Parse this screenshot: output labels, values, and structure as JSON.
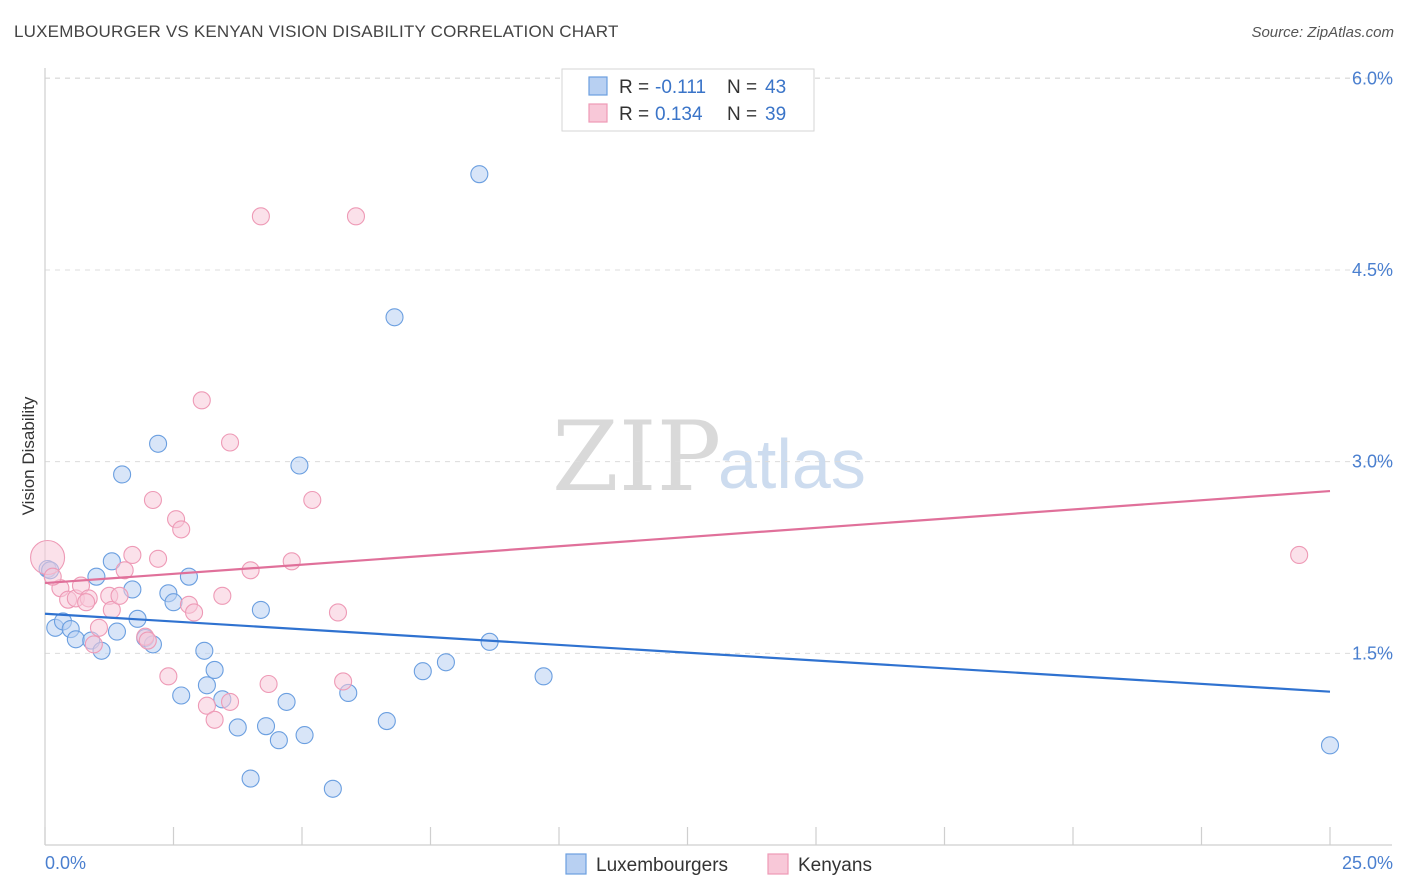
{
  "title": "LUXEMBOURGER VS KENYAN VISION DISABILITY CORRELATION CHART",
  "source": "Source: ZipAtlas.com",
  "watermark": {
    "zip": "ZIP",
    "atlas": "atlas"
  },
  "chart_data": {
    "type": "scatter",
    "ylabel": "Vision Disability",
    "xlim": [
      0,
      25
    ],
    "ylim": [
      0,
      6.3
    ],
    "x_tick_labels": [
      "0.0%",
      "25.0%"
    ],
    "y_ticks": [
      1.5,
      3.0,
      4.5,
      6.0
    ],
    "y_tick_labels": [
      "1.5%",
      "3.0%",
      "4.5%",
      "6.0%"
    ],
    "legend": [
      {
        "r_label": "R =",
        "r_value": "-0.111",
        "n_label": "N =",
        "n_value": "43"
      },
      {
        "r_label": "R =",
        "r_value": "0.134",
        "n_label": "N =",
        "n_value": "39"
      }
    ],
    "series": [
      {
        "name": "Luxembourgers",
        "color": "#6b9fe0",
        "fill": "#b8d0f2",
        "line_color": "#2f72d0",
        "trend": {
          "x": [
            0,
            25
          ],
          "y": [
            1.81,
            1.2
          ]
        },
        "points": [
          [
            0.05,
            2.16
          ],
          [
            0.2,
            1.7
          ],
          [
            0.35,
            1.75
          ],
          [
            0.5,
            1.69
          ],
          [
            0.6,
            1.61
          ],
          [
            0.9,
            1.6
          ],
          [
            1.0,
            2.1
          ],
          [
            1.1,
            1.52
          ],
          [
            1.3,
            2.22
          ],
          [
            1.4,
            1.67
          ],
          [
            1.5,
            2.9
          ],
          [
            1.7,
            2.0
          ],
          [
            1.8,
            1.77
          ],
          [
            1.95,
            1.62
          ],
          [
            2.1,
            1.57
          ],
          [
            2.2,
            3.14
          ],
          [
            2.4,
            1.97
          ],
          [
            2.5,
            1.9
          ],
          [
            2.65,
            1.17
          ],
          [
            2.8,
            2.1
          ],
          [
            3.1,
            1.52
          ],
          [
            3.15,
            1.25
          ],
          [
            3.3,
            1.37
          ],
          [
            3.45,
            1.14
          ],
          [
            3.75,
            0.92
          ],
          [
            4.0,
            0.52
          ],
          [
            4.2,
            1.84
          ],
          [
            4.3,
            0.93
          ],
          [
            4.55,
            0.82
          ],
          [
            4.7,
            1.12
          ],
          [
            4.95,
            2.97
          ],
          [
            5.05,
            0.86
          ],
          [
            5.6,
            0.44
          ],
          [
            5.9,
            1.19
          ],
          [
            6.65,
            0.97
          ],
          [
            6.8,
            4.13
          ],
          [
            7.35,
            1.36
          ],
          [
            7.8,
            1.43
          ],
          [
            8.45,
            5.25
          ],
          [
            8.65,
            1.59
          ],
          [
            9.7,
            1.32
          ],
          [
            25.0,
            0.78
          ],
          [
            0.1,
            2.15
          ]
        ]
      },
      {
        "name": "Kenyans",
        "color": "#ee9ab6",
        "fill": "#f8c8d8",
        "line_color": "#e0709a",
        "trend": {
          "x": [
            0,
            25
          ],
          "y": [
            2.05,
            2.77
          ]
        },
        "points": [
          [
            0.05,
            2.25
          ],
          [
            0.3,
            2.01
          ],
          [
            0.45,
            1.92
          ],
          [
            0.6,
            1.93
          ],
          [
            0.7,
            2.03
          ],
          [
            0.85,
            1.93
          ],
          [
            0.95,
            1.57
          ],
          [
            1.05,
            1.7
          ],
          [
            1.25,
            1.95
          ],
          [
            1.3,
            1.84
          ],
          [
            1.45,
            1.95
          ],
          [
            1.55,
            2.15
          ],
          [
            1.7,
            2.27
          ],
          [
            1.95,
            1.63
          ],
          [
            2.1,
            2.7
          ],
          [
            2.2,
            2.24
          ],
          [
            2.4,
            1.32
          ],
          [
            2.55,
            2.55
          ],
          [
            2.65,
            2.47
          ],
          [
            2.8,
            1.88
          ],
          [
            2.9,
            1.82
          ],
          [
            3.05,
            3.48
          ],
          [
            3.15,
            1.09
          ],
          [
            3.3,
            0.98
          ],
          [
            3.45,
            1.95
          ],
          [
            3.6,
            1.12
          ],
          [
            3.6,
            3.15
          ],
          [
            4.0,
            2.15
          ],
          [
            4.2,
            4.92
          ],
          [
            4.35,
            1.26
          ],
          [
            4.8,
            2.22
          ],
          [
            5.2,
            2.7
          ],
          [
            5.7,
            1.82
          ],
          [
            5.8,
            1.28
          ],
          [
            6.05,
            4.92
          ],
          [
            24.4,
            2.27
          ],
          [
            0.15,
            2.1
          ],
          [
            0.8,
            1.9
          ],
          [
            2.0,
            1.6
          ]
        ]
      }
    ]
  }
}
